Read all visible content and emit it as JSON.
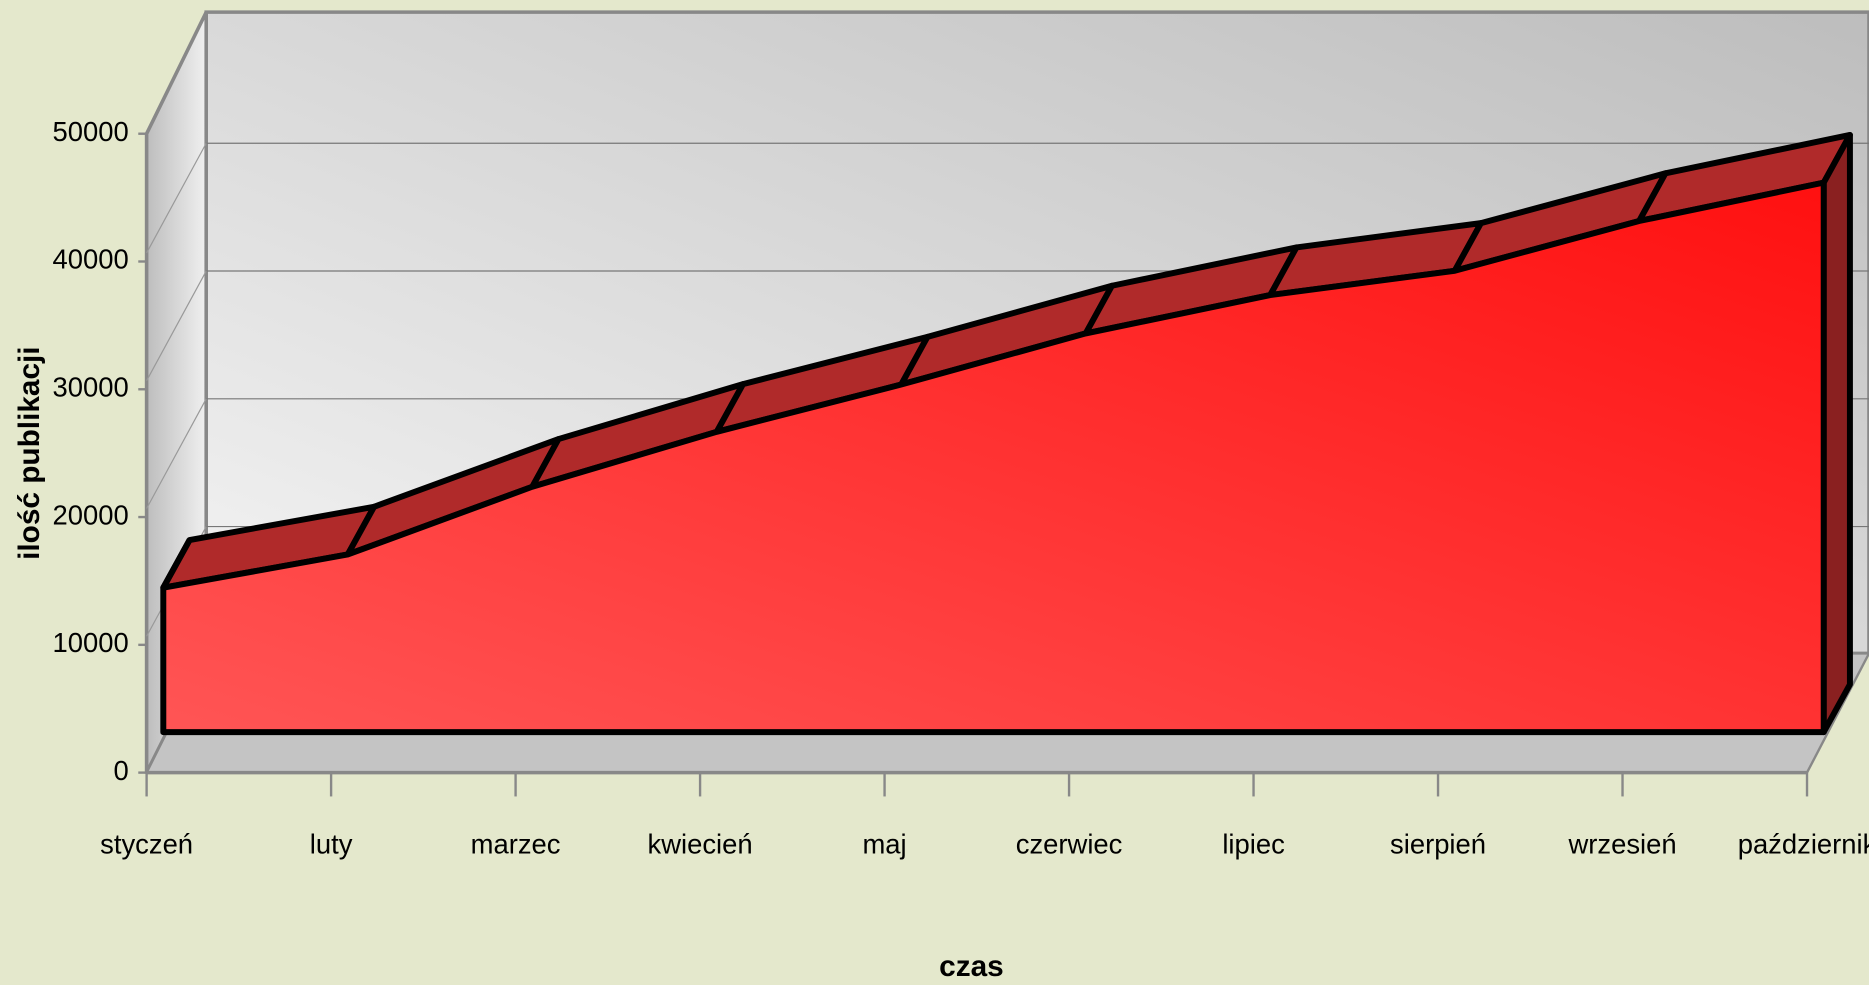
{
  "chart_data": {
    "type": "area3d",
    "x_label": "czas",
    "y_label": "ilość publikacji",
    "categories": [
      "styczeń",
      "luty",
      "marzec",
      "kwiecień",
      "maj",
      "czerwiec",
      "lipiec",
      "sierpień",
      "wrzesień",
      "październik"
    ],
    "values": [
      11300,
      13900,
      19200,
      23500,
      27200,
      31200,
      34200,
      36100,
      40000,
      43000
    ],
    "color": "#ff2020",
    "ylim": [
      0,
      50000
    ],
    "yticks": [
      0,
      10000,
      20000,
      30000,
      40000,
      50000
    ],
    "grid": true
  }
}
